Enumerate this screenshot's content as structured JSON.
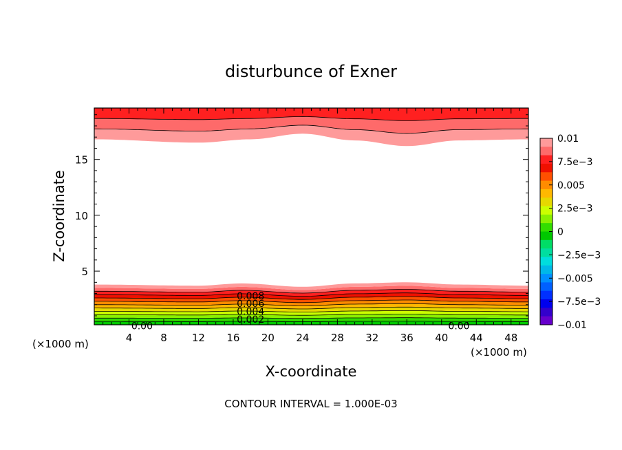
{
  "chart_data": {
    "type": "contour",
    "title": "disturbunce of Exner",
    "xlabel": "X-coordinate",
    "ylabel": "Z-coordinate",
    "x_unit_left": "(×1000 m)",
    "x_unit_right": "(×1000 m)",
    "footer": "CONTOUR INTERVAL = 1.000E-03",
    "xlim": [
      0,
      50
    ],
    "ylim": [
      0.2,
      19.6
    ],
    "x_ticks": [
      4,
      8,
      12,
      16,
      20,
      24,
      28,
      32,
      36,
      40,
      44,
      48
    ],
    "x_tick_labels": [
      "4",
      "8",
      "12",
      "16",
      "20",
      "24",
      "28",
      "32",
      "36",
      "40",
      "44",
      "48"
    ],
    "y_ticks": [
      5,
      10,
      15
    ],
    "y_tick_labels": [
      "5",
      "10",
      "15"
    ],
    "contour_interval": 0.001,
    "contour_labels": [
      {
        "text": "0.008",
        "x": 18,
        "z": 2.8
      },
      {
        "text": "0.006",
        "x": 18,
        "z": 2.1
      },
      {
        "text": "0.004",
        "x": 18,
        "z": 1.4
      },
      {
        "text": "0.002",
        "x": 18,
        "z": 0.7
      },
      {
        "text": "0.00",
        "x": 5.5,
        "z": 0.1
      },
      {
        "text": "0.00",
        "x": 42,
        "z": 0.1
      }
    ],
    "lower_boundary_z": {
      "x": [
        0,
        12,
        17,
        24,
        30,
        36,
        42,
        50
      ],
      "z": [
        3.8,
        3.7,
        3.9,
        3.6,
        3.9,
        4.0,
        3.8,
        3.7
      ]
    },
    "upper_boundary_z": {
      "x": [
        0,
        12,
        18,
        24,
        30,
        36,
        42,
        50
      ],
      "z": [
        16.8,
        16.5,
        16.8,
        17.3,
        16.7,
        16.2,
        16.7,
        16.8
      ]
    },
    "colorbar": {
      "min": -0.01,
      "max": 0.01,
      "tick_labels": [
        "0.01",
        "7.5e−3",
        "0.005",
        "2.5e−3",
        "0",
        "−2.5e−3",
        "−0.005",
        "−7.5e−3",
        "−0.01"
      ],
      "colors": [
        "#fe9a9a",
        "#fe6a6a",
        "#ff2020",
        "#ef1000",
        "#ff5000",
        "#ff8c00",
        "#ffb800",
        "#e6d800",
        "#ccff00",
        "#8af000",
        "#33dd00",
        "#00c800",
        "#00dd66",
        "#00dda0",
        "#00dddd",
        "#00b8e8",
        "#0090ff",
        "#0060ff",
        "#0030ff",
        "#0000ee",
        "#3300cc",
        "#6600cc"
      ]
    }
  }
}
